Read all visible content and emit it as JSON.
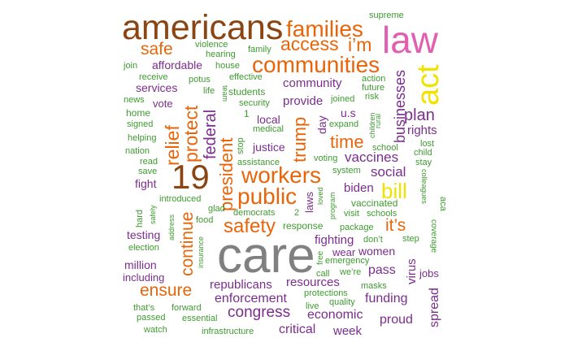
{
  "colors": {
    "brown": "#8B4513",
    "orange": "#E8650A",
    "purple": "#7B2D8E",
    "green": "#3E9B2F",
    "pink": "#E05FB0",
    "yellow": "#F2E200",
    "gray": "#808080"
  },
  "words": [
    {
      "text": "care",
      "color": "gray",
      "weight": 1.0
    },
    {
      "text": "americans",
      "color": "brown",
      "weight": 0.72
    },
    {
      "text": "law",
      "color": "pink",
      "weight": 0.72
    },
    {
      "text": "19",
      "color": "brown",
      "weight": 0.62
    },
    {
      "text": "act",
      "color": "yellow",
      "weight": 0.55
    },
    {
      "text": "families",
      "color": "orange",
      "weight": 0.42
    },
    {
      "text": "communities",
      "color": "orange",
      "weight": 0.42
    },
    {
      "text": "workers",
      "color": "orange",
      "weight": 0.42
    },
    {
      "text": "public",
      "color": "orange",
      "weight": 0.42
    },
    {
      "text": "bill",
      "color": "yellow",
      "weight": 0.38
    },
    {
      "text": "safety",
      "color": "orange",
      "weight": 0.36
    },
    {
      "text": "access",
      "color": "orange",
      "weight": 0.34
    },
    {
      "text": "i’m",
      "color": "orange",
      "weight": 0.34
    },
    {
      "text": "relief",
      "color": "orange",
      "weight": 0.34
    },
    {
      "text": "protect",
      "color": "orange",
      "weight": 0.34
    },
    {
      "text": "president",
      "color": "orange",
      "weight": 0.32
    },
    {
      "text": "trump",
      "color": "orange",
      "weight": 0.32
    },
    {
      "text": "time",
      "color": "orange",
      "weight": 0.32
    },
    {
      "text": "safe",
      "color": "orange",
      "weight": 0.3
    },
    {
      "text": "continue",
      "color": "orange",
      "weight": 0.3
    },
    {
      "text": "it’s",
      "color": "orange",
      "weight": 0.3
    },
    {
      "text": "ensure",
      "color": "orange",
      "weight": 0.3
    },
    {
      "text": "federal",
      "color": "purple",
      "weight": 0.28
    },
    {
      "text": "plan",
      "color": "purple",
      "weight": 0.28
    },
    {
      "text": "businesses",
      "color": "purple",
      "weight": 0.26
    },
    {
      "text": "congress",
      "color": "purple",
      "weight": 0.26
    },
    {
      "text": "social",
      "color": "purple",
      "weight": 0.24
    },
    {
      "text": "vaccines",
      "color": "purple",
      "weight": 0.24
    },
    {
      "text": "enforcement",
      "color": "purple",
      "weight": 0.22
    },
    {
      "text": "funding",
      "color": "purple",
      "weight": 0.22
    },
    {
      "text": "proud",
      "color": "purple",
      "weight": 0.22
    },
    {
      "text": "critical",
      "color": "purple",
      "weight": 0.22
    },
    {
      "text": "economic",
      "color": "purple",
      "weight": 0.22
    },
    {
      "text": "pass",
      "color": "purple",
      "weight": 0.22
    },
    {
      "text": "spread",
      "color": "purple",
      "weight": 0.22
    },
    {
      "text": "community",
      "color": "purple",
      "weight": 0.2
    },
    {
      "text": "fighting",
      "color": "purple",
      "weight": 0.2
    },
    {
      "text": "resources",
      "color": "purple",
      "weight": 0.2
    },
    {
      "text": "republicans",
      "color": "purple",
      "weight": 0.2
    },
    {
      "text": "biden",
      "color": "purple",
      "weight": 0.2
    },
    {
      "text": "provide",
      "color": "purple",
      "weight": 0.2
    },
    {
      "text": "rights",
      "color": "purple",
      "weight": 0.2
    },
    {
      "text": "virus",
      "color": "purple",
      "weight": 0.2
    },
    {
      "text": "week",
      "color": "purple",
      "weight": 0.2
    },
    {
      "text": "local",
      "color": "purple",
      "weight": 0.18
    },
    {
      "text": "justice",
      "color": "purple",
      "weight": 0.18
    },
    {
      "text": "day",
      "color": "purple",
      "weight": 0.18
    },
    {
      "text": "u.s",
      "color": "purple",
      "weight": 0.18
    },
    {
      "text": "fight",
      "color": "purple",
      "weight": 0.18
    },
    {
      "text": "testing",
      "color": "purple",
      "weight": 0.18
    },
    {
      "text": "million",
      "color": "purple",
      "weight": 0.18
    },
    {
      "text": "women",
      "color": "purple",
      "weight": 0.18
    },
    {
      "text": "affordable",
      "color": "purple",
      "weight": 0.18
    },
    {
      "text": "services",
      "color": "purple",
      "weight": 0.18
    },
    {
      "text": "laws",
      "color": "purple",
      "weight": 0.16
    },
    {
      "text": "vote",
      "color": "purple",
      "weight": 0.16
    },
    {
      "text": "including",
      "color": "purple",
      "weight": 0.16
    },
    {
      "text": "wear",
      "color": "purple",
      "weight": 0.16
    },
    {
      "text": "jobs",
      "color": "purple",
      "weight": 0.16
    },
    {
      "text": "supreme",
      "color": "green",
      "weight": 0.12
    },
    {
      "text": "violence",
      "color": "green",
      "weight": 0.12
    },
    {
      "text": "hearing",
      "color": "green",
      "weight": 0.12
    },
    {
      "text": "family",
      "color": "green",
      "weight": 0.12
    },
    {
      "text": "join",
      "color": "green",
      "weight": 0.12
    },
    {
      "text": "house",
      "color": "green",
      "weight": 0.12
    },
    {
      "text": "receive",
      "color": "green",
      "weight": 0.12
    },
    {
      "text": "potus",
      "color": "green",
      "weight": 0.12
    },
    {
      "text": "effective",
      "color": "green",
      "weight": 0.12
    },
    {
      "text": "action",
      "color": "green",
      "weight": 0.12
    },
    {
      "text": "future",
      "color": "green",
      "weight": 0.12
    },
    {
      "text": "life",
      "color": "green",
      "weight": 0.12
    },
    {
      "text": "team",
      "color": "green",
      "weight": 0.1
    },
    {
      "text": "students",
      "color": "green",
      "weight": 0.12
    },
    {
      "text": "risk",
      "color": "green",
      "weight": 0.12
    },
    {
      "text": "news",
      "color": "green",
      "weight": 0.12
    },
    {
      "text": "security",
      "color": "green",
      "weight": 0.12
    },
    {
      "text": "joined",
      "color": "green",
      "weight": 0.12
    },
    {
      "text": "home",
      "color": "green",
      "weight": 0.12
    },
    {
      "text": "1",
      "color": "green",
      "weight": 0.12
    },
    {
      "text": "rural",
      "color": "green",
      "weight": 0.1
    },
    {
      "text": "signed",
      "color": "green",
      "weight": 0.12
    },
    {
      "text": "medical",
      "color": "green",
      "weight": 0.12
    },
    {
      "text": "expand",
      "color": "green",
      "weight": 0.12
    },
    {
      "text": "children",
      "color": "green",
      "weight": 0.1
    },
    {
      "text": "helping",
      "color": "green",
      "weight": 0.12
    },
    {
      "text": "stop",
      "color": "green",
      "weight": 0.12
    },
    {
      "text": "lost",
      "color": "green",
      "weight": 0.12
    },
    {
      "text": "nation",
      "color": "green",
      "weight": 0.12
    },
    {
      "text": "school",
      "color": "green",
      "weight": 0.12
    },
    {
      "text": "child",
      "color": "green",
      "weight": 0.12
    },
    {
      "text": "read",
      "color": "green",
      "weight": 0.12
    },
    {
      "text": "voting",
      "color": "green",
      "weight": 0.12
    },
    {
      "text": "assistance",
      "color": "green",
      "weight": 0.12
    },
    {
      "text": "stay",
      "color": "green",
      "weight": 0.12
    },
    {
      "text": "save",
      "color": "green",
      "weight": 0.12
    },
    {
      "text": "system",
      "color": "green",
      "weight": 0.12
    },
    {
      "text": "colleagues",
      "color": "green",
      "weight": 0.1
    },
    {
      "text": "introduced",
      "color": "green",
      "weight": 0.12
    },
    {
      "text": "loved",
      "color": "green",
      "weight": 0.1
    },
    {
      "text": "program",
      "color": "green",
      "weight": 0.1
    },
    {
      "text": "vaccinated",
      "color": "green",
      "weight": 0.12
    },
    {
      "text": "aca",
      "color": "green",
      "weight": 0.12
    },
    {
      "text": "glad",
      "color": "green",
      "weight": 0.12
    },
    {
      "text": "hard",
      "color": "green",
      "weight": 0.12
    },
    {
      "text": "safely",
      "color": "green",
      "weight": 0.1
    },
    {
      "text": "address",
      "color": "green",
      "weight": 0.1
    },
    {
      "text": "democrats",
      "color": "green",
      "weight": 0.12
    },
    {
      "text": "2",
      "color": "green",
      "weight": 0.12
    },
    {
      "text": "visit",
      "color": "green",
      "weight": 0.12
    },
    {
      "text": "schools",
      "color": "green",
      "weight": 0.12
    },
    {
      "text": "food",
      "color": "green",
      "weight": 0.12
    },
    {
      "text": "response",
      "color": "green",
      "weight": 0.12
    },
    {
      "text": "package",
      "color": "green",
      "weight": 0.12
    },
    {
      "text": "election",
      "color": "green",
      "weight": 0.12
    },
    {
      "text": "insurance",
      "color": "green",
      "weight": 0.1
    },
    {
      "text": "don’t",
      "color": "green",
      "weight": 0.12
    },
    {
      "text": "step",
      "color": "green",
      "weight": 0.12
    },
    {
      "text": "coverage",
      "color": "green",
      "weight": 0.1
    },
    {
      "text": "free",
      "color": "green",
      "weight": 0.1
    },
    {
      "text": "emergency",
      "color": "green",
      "weight": 0.12
    },
    {
      "text": "call",
      "color": "green",
      "weight": 0.12
    },
    {
      "text": "we’re",
      "color": "green",
      "weight": 0.12
    },
    {
      "text": "masks",
      "color": "green",
      "weight": 0.12
    },
    {
      "text": "protections",
      "color": "green",
      "weight": 0.12
    },
    {
      "text": "live",
      "color": "green",
      "weight": 0.12
    },
    {
      "text": "quality",
      "color": "green",
      "weight": 0.12
    },
    {
      "text": "that’s",
      "color": "green",
      "weight": 0.12
    },
    {
      "text": "forward",
      "color": "green",
      "weight": 0.12
    },
    {
      "text": "passed",
      "color": "green",
      "weight": 0.12
    },
    {
      "text": "essential",
      "color": "green",
      "weight": 0.12
    },
    {
      "text": "watch",
      "color": "green",
      "weight": 0.12
    },
    {
      "text": "infrastructure",
      "color": "green",
      "weight": 0.12
    }
  ]
}
